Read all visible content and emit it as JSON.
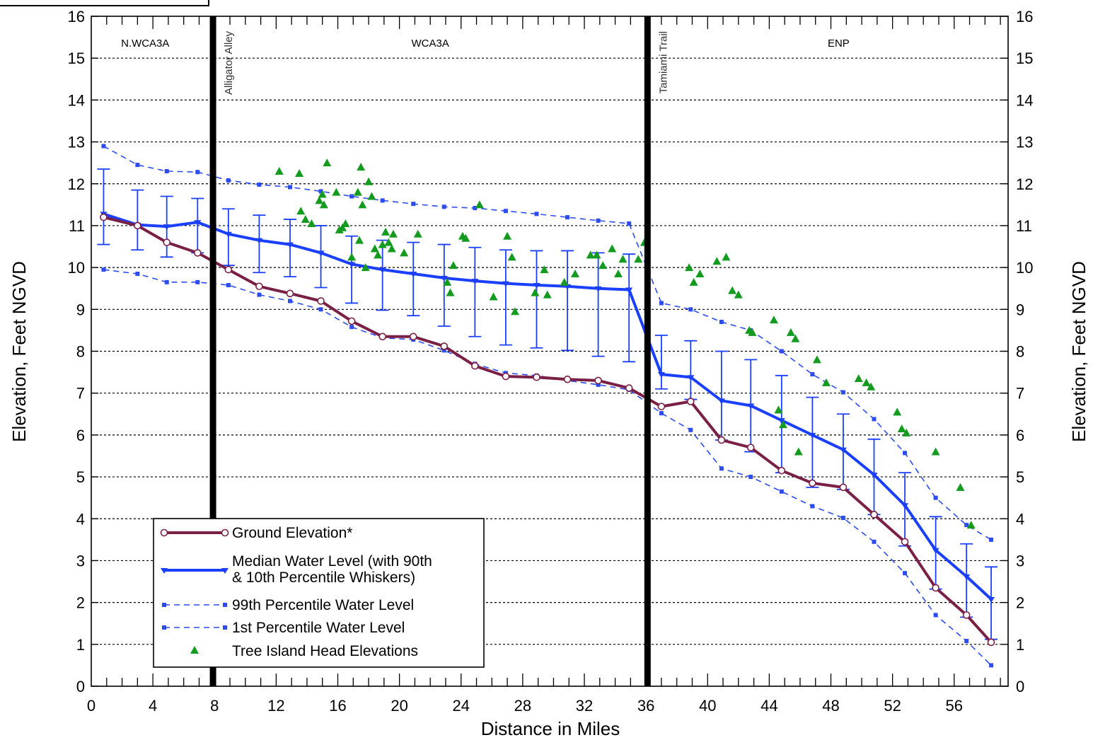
{
  "colors": {
    "ground": "#7a1f45",
    "median": "#1a3fff",
    "percentile": "#2c4cf0",
    "tree": "#139a1f",
    "divider": "#000000",
    "plot_bg": "#ffffff"
  },
  "chart_data": {
    "type": "line",
    "xlabel": "Distance in Miles",
    "ylabel_left": "Elevation, Feet NGVD",
    "ylabel_right": "Elevation, Feet NGVD",
    "xlim": [
      0,
      59.5
    ],
    "ylim": [
      0,
      16
    ],
    "x_ticks": [
      "0",
      "4",
      "8",
      "12",
      "16",
      "20",
      "24",
      "28",
      "32",
      "36",
      "40",
      "44",
      "48",
      "52",
      "56"
    ],
    "y_ticks": [
      "0",
      "1",
      "2",
      "3",
      "4",
      "5",
      "6",
      "7",
      "8",
      "9",
      "10",
      "11",
      "12",
      "13",
      "14",
      "15",
      "16"
    ],
    "grid": "horizontal dotted",
    "regions": [
      {
        "label": "N.WCA3A",
        "x": 3.5
      },
      {
        "label": "WCA3A",
        "x": 22
      },
      {
        "label": "ENP",
        "x": 48.5
      }
    ],
    "dividers": [
      {
        "label": "Alligator Alley",
        "x": 7.9
      },
      {
        "label": "Tamiami Trail",
        "x": 36.1
      }
    ],
    "legend": {
      "placement": "bottom-left",
      "entries": [
        {
          "key": "ground",
          "label": "Ground Elevation*"
        },
        {
          "key": "median",
          "label": "Median Water Level (with 90th",
          "label2": "& 10th Percentile Whiskers)"
        },
        {
          "key": "p99",
          "label": "99th Percentile Water Level"
        },
        {
          "key": "p1",
          "label": "1st Percentile Water Level"
        },
        {
          "key": "tree",
          "label": "Tree Island Head Elevations"
        }
      ]
    },
    "series": {
      "ground": {
        "x": [
          0.8,
          3,
          4.9,
          6.9,
          8.9,
          10.9,
          12.9,
          14.9,
          16.9,
          18.9,
          20.9,
          22.9,
          24.9,
          26.9,
          28.9,
          30.9,
          32.9,
          34.9,
          37,
          38.9,
          40.9,
          42.8,
          44.8,
          46.8,
          48.8,
          50.8,
          52.8,
          54.8,
          56.8,
          58.4
        ],
        "y": [
          11.2,
          11.0,
          10.6,
          10.35,
          9.95,
          9.55,
          9.38,
          9.2,
          8.72,
          8.35,
          8.35,
          8.12,
          7.65,
          7.4,
          7.38,
          7.33,
          7.3,
          7.12,
          6.68,
          6.8,
          5.88,
          5.7,
          5.15,
          4.85,
          4.75,
          4.1,
          3.45,
          2.35,
          1.7,
          1.05
        ]
      },
      "median": {
        "x": [
          0.8,
          3,
          4.9,
          6.9,
          8.9,
          10.9,
          12.9,
          14.9,
          16.9,
          18.9,
          20.9,
          22.9,
          24.9,
          26.9,
          28.9,
          30.9,
          32.9,
          34.9,
          37,
          38.9,
          40.9,
          42.8,
          44.8,
          46.8,
          48.8,
          50.8,
          52.8,
          54.8,
          56.8,
          58.4
        ],
        "y": [
          11.28,
          11.02,
          10.98,
          11.08,
          10.8,
          10.65,
          10.55,
          10.35,
          10.08,
          9.95,
          9.85,
          9.75,
          9.68,
          9.62,
          9.58,
          9.55,
          9.5,
          9.47,
          7.45,
          7.38,
          6.82,
          6.7,
          6.35,
          6.0,
          5.65,
          5.05,
          4.32,
          3.25,
          2.62,
          2.08
        ],
        "p90": [
          12.35,
          11.85,
          11.7,
          11.65,
          11.4,
          11.25,
          11.15,
          11.0,
          10.75,
          10.65,
          10.6,
          10.55,
          10.48,
          10.42,
          10.4,
          10.4,
          10.35,
          10.32,
          8.38,
          8.25,
          8.0,
          7.8,
          7.42,
          6.9,
          6.5,
          5.9,
          5.1,
          4.05,
          3.4,
          2.85
        ],
        "p10": [
          10.55,
          10.42,
          10.25,
          10.35,
          10.05,
          9.88,
          9.78,
          9.52,
          9.15,
          8.98,
          8.85,
          8.6,
          8.35,
          8.15,
          8.08,
          8.02,
          7.88,
          7.75,
          7.1,
          6.85,
          5.88,
          5.6,
          5.1,
          4.75,
          4.7,
          4.1,
          3.35,
          2.32,
          1.65,
          1.12
        ]
      },
      "p99": {
        "x": [
          0.8,
          3,
          4.9,
          6.9,
          8.9,
          10.9,
          12.9,
          14.9,
          16.9,
          18.9,
          20.9,
          22.9,
          24.9,
          26.9,
          28.9,
          30.9,
          32.9,
          34.9,
          37,
          38.9,
          40.9,
          42.8,
          44.8,
          46.8,
          48.8,
          50.8,
          52.8,
          54.8,
          56.8,
          58.4
        ],
        "y": [
          12.9,
          12.45,
          12.3,
          12.28,
          12.08,
          11.98,
          11.92,
          11.82,
          11.7,
          11.6,
          11.52,
          11.45,
          11.42,
          11.35,
          11.28,
          11.2,
          11.12,
          11.05,
          9.15,
          9.0,
          8.7,
          8.5,
          8.0,
          7.45,
          7.02,
          6.38,
          5.57,
          4.5,
          3.85,
          3.5
        ]
      },
      "p1": {
        "x": [
          0.8,
          3,
          4.9,
          6.9,
          8.9,
          10.9,
          12.9,
          14.9,
          16.9,
          18.9,
          20.9,
          22.9,
          24.9,
          26.9,
          28.9,
          30.9,
          32.9,
          34.9,
          37,
          38.9,
          40.9,
          42.8,
          44.8,
          46.8,
          48.8,
          50.8,
          52.8,
          54.8,
          56.8,
          58.4
        ],
        "y": [
          9.95,
          9.85,
          9.65,
          9.65,
          9.58,
          9.35,
          9.2,
          9.0,
          8.58,
          8.32,
          8.28,
          8.02,
          7.7,
          7.48,
          7.42,
          7.3,
          7.2,
          7.08,
          6.52,
          6.12,
          5.2,
          5.0,
          4.65,
          4.3,
          4.02,
          3.45,
          2.7,
          1.7,
          1.08,
          0.5
        ]
      },
      "tree": {
        "x": [
          12.2,
          13.5,
          13.6,
          13.9,
          14.3,
          14.8,
          15.0,
          15.1,
          15.3,
          15.9,
          16.1,
          16.3,
          16.5,
          16.9,
          17.3,
          17.4,
          17.5,
          17.6,
          17.8,
          18.0,
          18.2,
          18.4,
          18.6,
          18.9,
          19.1,
          19.3,
          19.5,
          19.6,
          20.3,
          21.2,
          23.1,
          23.3,
          23.5,
          24.1,
          24.3,
          25.2,
          26.1,
          27.0,
          27.3,
          27.5,
          28.8,
          29.4,
          29.6,
          30.7,
          31.4,
          32.4,
          32.8,
          33.2,
          33.8,
          34.2,
          34.5,
          35.5,
          35.9,
          38.8,
          39.1,
          39.5,
          40.6,
          41.2,
          41.6,
          42.0,
          42.7,
          42.9,
          44.3,
          44.6,
          44.9,
          45.4,
          45.7,
          45.9,
          47.1,
          47.7,
          49.8,
          50.3,
          50.6,
          52.3,
          52.6,
          52.9,
          54.8,
          56.4,
          57.1
        ],
        "y": [
          12.3,
          12.25,
          11.35,
          11.15,
          11.05,
          11.6,
          11.75,
          11.5,
          12.5,
          11.8,
          10.9,
          10.95,
          11.05,
          10.25,
          11.8,
          10.65,
          12.4,
          11.5,
          10.0,
          12.05,
          11.7,
          10.45,
          10.3,
          10.55,
          10.85,
          10.6,
          10.45,
          10.8,
          10.35,
          10.8,
          9.65,
          9.4,
          10.05,
          10.75,
          10.7,
          11.5,
          9.3,
          10.75,
          10.25,
          8.95,
          9.4,
          9.95,
          9.35,
          9.65,
          9.85,
          10.3,
          10.3,
          10.05,
          10.45,
          9.85,
          10.2,
          10.2,
          10.6,
          10.0,
          9.65,
          9.85,
          10.15,
          10.25,
          9.45,
          9.35,
          8.5,
          8.45,
          8.75,
          6.6,
          6.25,
          8.45,
          8.3,
          5.6,
          7.8,
          7.25,
          7.35,
          7.25,
          7.15,
          6.55,
          6.15,
          6.05,
          5.6,
          4.75,
          3.85
        ]
      }
    }
  }
}
